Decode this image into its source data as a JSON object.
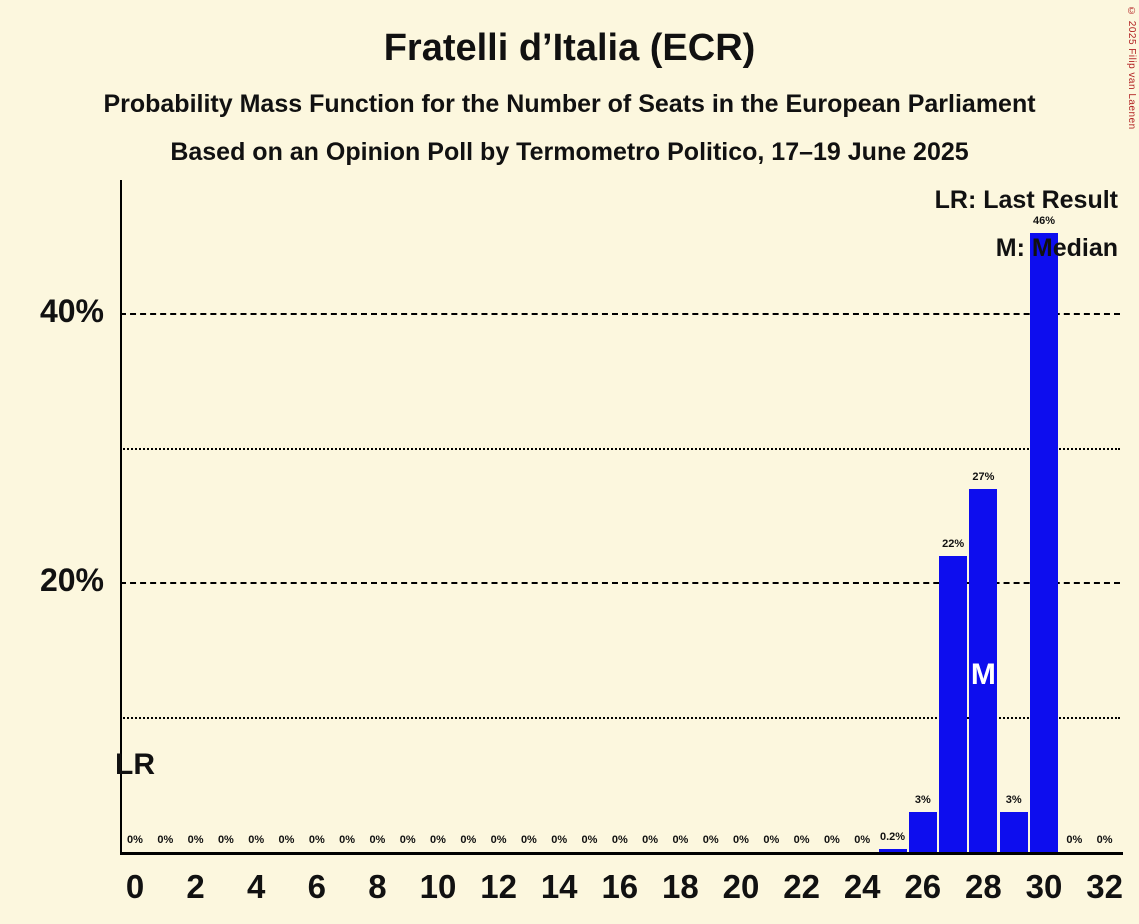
{
  "title": "Fratelli d’Italia (ECR)",
  "subtitles": {
    "line1": "Probability Mass Function for the Number of Seats in the European Parliament",
    "line2": "Based on an Opinion Poll by Termometro Politico, 17–19 June 2025"
  },
  "legend": {
    "last_result": "LR: Last Result",
    "median": "M: Median"
  },
  "copyright": "© 2025 Filip van Laenen",
  "colors": {
    "background": "#FCF7DE",
    "bar": "#0D0DEE",
    "text": "#111111",
    "copyright": "#B22222"
  },
  "chart_data": {
    "type": "bar",
    "title": "Fratelli d’Italia (ECR)",
    "xlabel": "",
    "ylabel": "",
    "x": [
      0,
      1,
      2,
      3,
      4,
      5,
      6,
      7,
      8,
      9,
      10,
      11,
      12,
      13,
      14,
      15,
      16,
      17,
      18,
      19,
      20,
      21,
      22,
      23,
      24,
      25,
      26,
      27,
      28,
      29,
      30,
      31,
      32
    ],
    "values": [
      0,
      0,
      0,
      0,
      0,
      0,
      0,
      0,
      0,
      0,
      0,
      0,
      0,
      0,
      0,
      0,
      0,
      0,
      0,
      0,
      0,
      0,
      0,
      0,
      0,
      0.2,
      3,
      22,
      27,
      3,
      46,
      0,
      0
    ],
    "bar_labels": [
      "0%",
      "0%",
      "0%",
      "0%",
      "0%",
      "0%",
      "0%",
      "0%",
      "0%",
      "0%",
      "0%",
      "0%",
      "0%",
      "0%",
      "0%",
      "0%",
      "0%",
      "0%",
      "0%",
      "0%",
      "0%",
      "0%",
      "0%",
      "0%",
      "0%",
      "0.2%",
      "3%",
      "22%",
      "27%",
      "3%",
      "46%",
      "0%",
      "0%"
    ],
    "x_tick_labels": [
      "0",
      "2",
      "4",
      "6",
      "8",
      "10",
      "12",
      "14",
      "16",
      "18",
      "20",
      "22",
      "24",
      "26",
      "28",
      "30",
      "32"
    ],
    "y_axis": {
      "ticks": [
        {
          "value": 20,
          "label": "20%"
        },
        {
          "value": 40,
          "label": "40%"
        }
      ],
      "gridlines": [
        {
          "value": 10,
          "style": "dotted"
        },
        {
          "value": 20,
          "style": "dashed"
        },
        {
          "value": 30,
          "style": "dotted"
        },
        {
          "value": 40,
          "style": "dashed"
        }
      ],
      "ylim": [
        0,
        50
      ]
    },
    "markers": {
      "last_result": {
        "seat": 0,
        "label": "LR"
      },
      "median": {
        "seat": 28,
        "label": "M"
      }
    },
    "legend_position": "top-right",
    "grid": "horizontal-only"
  }
}
